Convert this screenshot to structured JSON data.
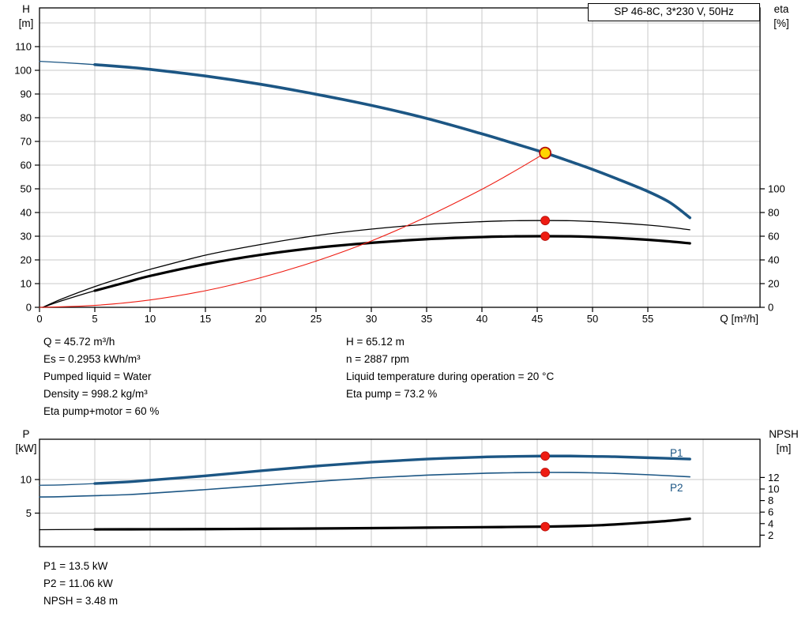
{
  "colors": {
    "curve_blue": "#1c5684",
    "grid": "#c8c8c8",
    "red": "#ee1c12",
    "red_dark": "#b30d08",
    "yellow": "#ffd400",
    "black": "#000000"
  },
  "operating_point": {
    "left_lines": [
      "Q = 45.72 m³/h",
      "Es = 0.2953 kWh/m³",
      "Pumped liquid = Water",
      "Density = 998.2 kg/m³",
      "Eta pump+motor = 60 %"
    ],
    "right_lines": [
      "H = 65.12 m",
      "n = 2887 rpm",
      "Liquid temperature during operation = 20 °C",
      "Eta pump = 73.2 %"
    ],
    "power_lines": [
      "P1 = 13.5 kW",
      "P2 = 11.06 kW",
      "NPSH = 3.48 m"
    ]
  },
  "chart_data": [
    {
      "type": "line",
      "title": "SP 46-8C, 3*230 V, 50Hz",
      "xlabel": "Q [m³/h]",
      "ylabel_lines": [
        "H",
        "[m]"
      ],
      "y2label_lines": [
        "eta",
        "[%]"
      ],
      "xlim": [
        0,
        65
      ],
      "ylim": [
        0,
        126
      ],
      "y2lim": [
        0,
        100
      ],
      "x_ticks": [
        0,
        5,
        10,
        15,
        20,
        25,
        30,
        35,
        40,
        45,
        50,
        55
      ],
      "y_ticks": [
        0,
        10,
        20,
        30,
        40,
        50,
        60,
        70,
        80,
        90,
        100,
        110
      ],
      "y2_ticks": [
        0,
        20,
        40,
        60,
        80,
        100
      ],
      "grid": true,
      "series": [
        {
          "name": "H",
          "axis": "y",
          "color": "#1c5684",
          "width": 3.6,
          "thin_until": 4,
          "points": [
            [
              0,
              103.8
            ],
            [
              2,
              103.3
            ],
            [
              5,
              102.4
            ],
            [
              8,
              101.3
            ],
            [
              10,
              100.4
            ],
            [
              15,
              97.6
            ],
            [
              20,
              94.1
            ],
            [
              25,
              89.9
            ],
            [
              30,
              85.2
            ],
            [
              35,
              79.7
            ],
            [
              40,
              73.2
            ],
            [
              43,
              69.0
            ],
            [
              45.72,
              65.12
            ],
            [
              48,
              61.5
            ],
            [
              50,
              58.2
            ],
            [
              52,
              54.6
            ],
            [
              55,
              48.9
            ],
            [
              57,
              44.2
            ],
            [
              58.8,
              37.8
            ]
          ]
        },
        {
          "name": "eta-pump",
          "axis": "y2",
          "color": "#000000",
          "width": 1.3,
          "points": [
            [
              0.3,
              0
            ],
            [
              2,
              7
            ],
            [
              5,
              17.5
            ],
            [
              8,
              26.5
            ],
            [
              10,
              32
            ],
            [
              15,
              44
            ],
            [
              20,
              53
            ],
            [
              25,
              60.5
            ],
            [
              30,
              66
            ],
            [
              35,
              70
            ],
            [
              40,
              72.3
            ],
            [
              43,
              73.1
            ],
            [
              45.72,
              73.2
            ],
            [
              48,
              73.1
            ],
            [
              50,
              72.4
            ],
            [
              52,
              71.4
            ],
            [
              55,
              69.4
            ],
            [
              57,
              67.6
            ],
            [
              58.8,
              65.4
            ]
          ]
        },
        {
          "name": "eta-pump-plus-motor",
          "axis": "y2",
          "color": "#000000",
          "width": 3.2,
          "thin_until": 4,
          "points": [
            [
              0.3,
              0
            ],
            [
              2,
              5.5
            ],
            [
              5,
              14
            ],
            [
              8,
              21.5
            ],
            [
              10,
              26.5
            ],
            [
              15,
              36.5
            ],
            [
              20,
              44.3
            ],
            [
              25,
              50.2
            ],
            [
              30,
              54.4
            ],
            [
              35,
              57.5
            ],
            [
              40,
              59.3
            ],
            [
              43,
              59.9
            ],
            [
              45.72,
              60
            ],
            [
              48,
              59.9
            ],
            [
              50,
              59.4
            ],
            [
              52,
              58.6
            ],
            [
              55,
              57
            ],
            [
              57,
              55.6
            ],
            [
              58.8,
              54
            ]
          ]
        },
        {
          "name": "duty-parabola",
          "axis": "y",
          "color": "#ee1c12",
          "width": 1.1,
          "points": [
            [
              0,
              0
            ],
            [
              5,
              0.8
            ],
            [
              10,
              3.1
            ],
            [
              15,
              7
            ],
            [
              20,
              12.5
            ],
            [
              25,
              19.5
            ],
            [
              30,
              28
            ],
            [
              35,
              38.2
            ],
            [
              40,
              49.8
            ],
            [
              43,
              57.6
            ],
            [
              45.72,
              65.12
            ]
          ]
        }
      ],
      "markers": [
        {
          "x": 45.72,
          "y": 65.12,
          "axis": "y",
          "style": "duty"
        },
        {
          "x": 45.72,
          "y": 73.2,
          "axis": "y2",
          "style": "dot"
        },
        {
          "x": 45.72,
          "y": 60,
          "axis": "y2",
          "style": "dot"
        }
      ]
    },
    {
      "type": "line",
      "title": "",
      "xlabel": "",
      "ylabel_lines": [
        "P",
        "[kW]"
      ],
      "y2label_lines": [
        "NPSH",
        "[m]"
      ],
      "xlim": [
        0,
        65
      ],
      "ylim": [
        0,
        16
      ],
      "y2lim": [
        0,
        18.6
      ],
      "x_ticks": [],
      "y_ticks": [
        5,
        10
      ],
      "y2_ticks": [
        2,
        4,
        6,
        8,
        10,
        12
      ],
      "grid": true,
      "series": [
        {
          "name": "P1",
          "axis": "y",
          "color": "#1c5684",
          "width": 3.4,
          "thin_until": 4,
          "points": [
            [
              0,
              9.15
            ],
            [
              2,
              9.2
            ],
            [
              5,
              9.4
            ],
            [
              8,
              9.65
            ],
            [
              10,
              9.9
            ],
            [
              15,
              10.55
            ],
            [
              20,
              11.3
            ],
            [
              25,
              12.0
            ],
            [
              30,
              12.6
            ],
            [
              35,
              13.05
            ],
            [
              40,
              13.35
            ],
            [
              43,
              13.45
            ],
            [
              45.72,
              13.5
            ],
            [
              48,
              13.5
            ],
            [
              50,
              13.45
            ],
            [
              52,
              13.4
            ],
            [
              55,
              13.25
            ],
            [
              58.8,
              13.05
            ]
          ]
        },
        {
          "name": "P2",
          "axis": "y",
          "color": "#1c5684",
          "width": 1.6,
          "points": [
            [
              0,
              7.4
            ],
            [
              2,
              7.45
            ],
            [
              5,
              7.6
            ],
            [
              8,
              7.75
            ],
            [
              10,
              7.95
            ],
            [
              15,
              8.5
            ],
            [
              20,
              9.1
            ],
            [
              25,
              9.7
            ],
            [
              30,
              10.25
            ],
            [
              35,
              10.65
            ],
            [
              40,
              10.92
            ],
            [
              43,
              11.02
            ],
            [
              45.72,
              11.06
            ],
            [
              48,
              11.05
            ],
            [
              50,
              11.0
            ],
            [
              52,
              10.92
            ],
            [
              55,
              10.72
            ],
            [
              58.8,
              10.4
            ]
          ]
        },
        {
          "name": "NPSH",
          "axis": "y2",
          "color": "#000000",
          "width": 3.2,
          "thin_until": 4,
          "points": [
            [
              0,
              2.95
            ],
            [
              5,
              3.0
            ],
            [
              10,
              3.02
            ],
            [
              15,
              3.05
            ],
            [
              20,
              3.1
            ],
            [
              25,
              3.15
            ],
            [
              30,
              3.22
            ],
            [
              35,
              3.3
            ],
            [
              40,
              3.38
            ],
            [
              43,
              3.43
            ],
            [
              45.72,
              3.48
            ],
            [
              48,
              3.56
            ],
            [
              50,
              3.67
            ],
            [
              52,
              3.85
            ],
            [
              55,
              4.22
            ],
            [
              57,
              4.5
            ],
            [
              58.8,
              4.85
            ]
          ]
        }
      ],
      "markers": [
        {
          "x": 45.72,
          "y": 13.5,
          "axis": "y",
          "style": "dot"
        },
        {
          "x": 45.72,
          "y": 11.06,
          "axis": "y",
          "style": "dot"
        },
        {
          "x": 45.72,
          "y": 3.48,
          "axis": "y2",
          "style": "dot"
        }
      ]
    }
  ]
}
